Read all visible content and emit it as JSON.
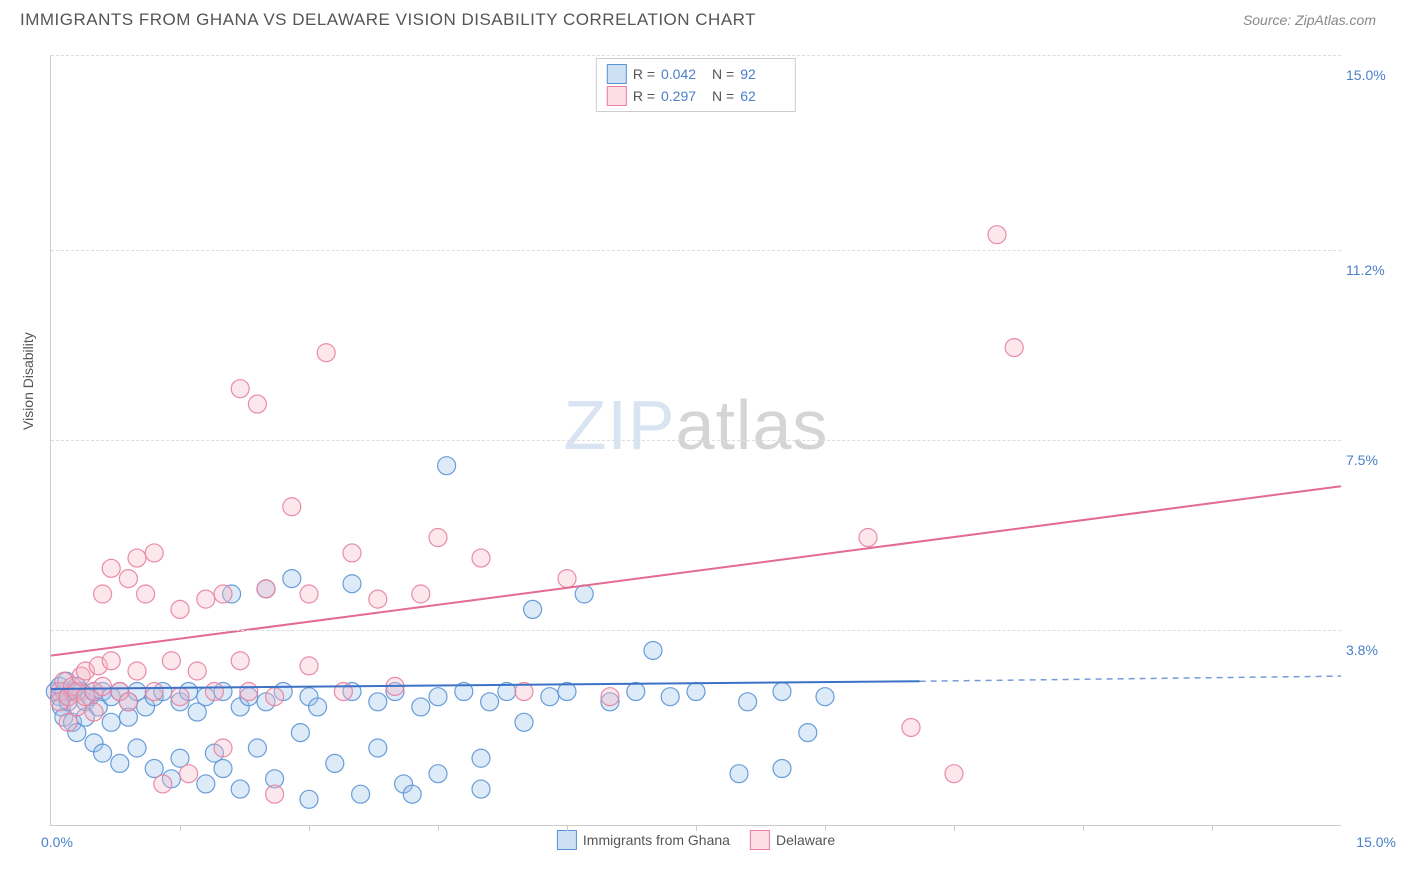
{
  "title": "IMMIGRANTS FROM GHANA VS DELAWARE VISION DISABILITY CORRELATION CHART",
  "source_label": "Source:",
  "source_name": "ZipAtlas.com",
  "ylabel": "Vision Disability",
  "watermark_main": "ZIP",
  "watermark_sub": "atlas",
  "chart": {
    "type": "scatter-with-trend",
    "xlim": [
      0,
      15
    ],
    "ylim": [
      0,
      15
    ],
    "yticks": [
      {
        "v": 3.8,
        "label": "3.8%"
      },
      {
        "v": 7.5,
        "label": "7.5%"
      },
      {
        "v": 11.2,
        "label": "11.2%"
      },
      {
        "v": 15.0,
        "label": "15.0%"
      }
    ],
    "xticks_minor": [
      1.5,
      3.0,
      4.5,
      6.0,
      7.5,
      9.0,
      10.5,
      12.0,
      13.5
    ],
    "xtick_left": "0.0%",
    "xtick_right": "15.0%",
    "grid_color": "#dddddd",
    "background": "#ffffff",
    "marker_radius": 9,
    "marker_fill_opacity": 0.35,
    "marker_stroke_opacity": 0.9,
    "series": [
      {
        "key": "ghana",
        "label": "Immigrants from Ghana",
        "color_fill": "#9ec4ea",
        "color_stroke": "#5a93d4",
        "R": "0.042",
        "N": "92",
        "trend": {
          "x1": 0,
          "y1": 2.65,
          "x2": 10.1,
          "y2": 2.8,
          "dash_x2": 15,
          "dash_y2": 2.9,
          "stroke": "#3c72c5",
          "width": 2
        },
        "points": [
          [
            0.05,
            2.6
          ],
          [
            0.1,
            2.5
          ],
          [
            0.1,
            2.7
          ],
          [
            0.12,
            2.3
          ],
          [
            0.15,
            2.6
          ],
          [
            0.15,
            2.1
          ],
          [
            0.18,
            2.8
          ],
          [
            0.2,
            2.4
          ],
          [
            0.2,
            2.5
          ],
          [
            0.25,
            2.6
          ],
          [
            0.25,
            2.0
          ],
          [
            0.3,
            2.7
          ],
          [
            0.3,
            1.8
          ],
          [
            0.35,
            2.6
          ],
          [
            0.4,
            2.4
          ],
          [
            0.4,
            2.1
          ],
          [
            0.45,
            2.5
          ],
          [
            0.5,
            2.6
          ],
          [
            0.5,
            1.6
          ],
          [
            0.55,
            2.3
          ],
          [
            0.6,
            2.6
          ],
          [
            0.6,
            1.4
          ],
          [
            0.7,
            2.5
          ],
          [
            0.7,
            2.0
          ],
          [
            0.8,
            2.6
          ],
          [
            0.8,
            1.2
          ],
          [
            0.9,
            2.4
          ],
          [
            0.9,
            2.1
          ],
          [
            1.0,
            2.6
          ],
          [
            1.0,
            1.5
          ],
          [
            1.1,
            2.3
          ],
          [
            1.2,
            1.1
          ],
          [
            1.2,
            2.5
          ],
          [
            1.3,
            2.6
          ],
          [
            1.4,
            0.9
          ],
          [
            1.5,
            2.4
          ],
          [
            1.5,
            1.3
          ],
          [
            1.6,
            2.6
          ],
          [
            1.7,
            2.2
          ],
          [
            1.8,
            0.8
          ],
          [
            1.8,
            2.5
          ],
          [
            1.9,
            1.4
          ],
          [
            2.0,
            2.6
          ],
          [
            2.0,
            1.1
          ],
          [
            2.1,
            4.5
          ],
          [
            2.2,
            2.3
          ],
          [
            2.2,
            0.7
          ],
          [
            2.3,
            2.5
          ],
          [
            2.4,
            1.5
          ],
          [
            2.5,
            4.6
          ],
          [
            2.5,
            2.4
          ],
          [
            2.6,
            0.9
          ],
          [
            2.7,
            2.6
          ],
          [
            2.8,
            4.8
          ],
          [
            2.9,
            1.8
          ],
          [
            3.0,
            2.5
          ],
          [
            3.0,
            0.5
          ],
          [
            3.1,
            2.3
          ],
          [
            3.3,
            1.2
          ],
          [
            3.5,
            2.6
          ],
          [
            3.5,
            4.7
          ],
          [
            3.6,
            0.6
          ],
          [
            3.8,
            2.4
          ],
          [
            3.8,
            1.5
          ],
          [
            4.0,
            2.6
          ],
          [
            4.1,
            0.8
          ],
          [
            4.3,
            2.3
          ],
          [
            4.5,
            2.5
          ],
          [
            4.5,
            1.0
          ],
          [
            4.6,
            7.0
          ],
          [
            4.8,
            2.6
          ],
          [
            5.0,
            1.3
          ],
          [
            5.1,
            2.4
          ],
          [
            5.3,
            2.6
          ],
          [
            5.5,
            2.0
          ],
          [
            5.6,
            4.2
          ],
          [
            5.8,
            2.5
          ],
          [
            6.0,
            2.6
          ],
          [
            6.2,
            4.5
          ],
          [
            6.5,
            2.4
          ],
          [
            6.8,
            2.6
          ],
          [
            7.0,
            3.4
          ],
          [
            7.2,
            2.5
          ],
          [
            7.5,
            2.6
          ],
          [
            8.0,
            1.0
          ],
          [
            8.1,
            2.4
          ],
          [
            8.5,
            2.6
          ],
          [
            8.5,
            1.1
          ],
          [
            9.0,
            2.5
          ],
          [
            8.8,
            1.8
          ],
          [
            5.0,
            0.7
          ],
          [
            4.2,
            0.6
          ]
        ]
      },
      {
        "key": "delaware",
        "label": "Delaware",
        "color_fill": "#f4b9c8",
        "color_stroke": "#e87fa0",
        "R": "0.297",
        "N": "62",
        "trend": {
          "x1": 0,
          "y1": 3.3,
          "x2": 15,
          "y2": 6.6,
          "dash_x2": null,
          "dash_y2": null,
          "stroke": "#e46a8f",
          "width": 2
        },
        "points": [
          [
            0.1,
            2.6
          ],
          [
            0.1,
            2.4
          ],
          [
            0.15,
            2.8
          ],
          [
            0.2,
            2.5
          ],
          [
            0.2,
            2.0
          ],
          [
            0.25,
            2.7
          ],
          [
            0.3,
            2.6
          ],
          [
            0.3,
            2.3
          ],
          [
            0.35,
            2.9
          ],
          [
            0.4,
            2.5
          ],
          [
            0.4,
            3.0
          ],
          [
            0.5,
            2.6
          ],
          [
            0.5,
            2.2
          ],
          [
            0.55,
            3.1
          ],
          [
            0.6,
            4.5
          ],
          [
            0.6,
            2.7
          ],
          [
            0.7,
            3.2
          ],
          [
            0.7,
            5.0
          ],
          [
            0.8,
            2.6
          ],
          [
            0.9,
            4.8
          ],
          [
            0.9,
            2.4
          ],
          [
            1.0,
            5.2
          ],
          [
            1.0,
            3.0
          ],
          [
            1.1,
            4.5
          ],
          [
            1.2,
            2.6
          ],
          [
            1.2,
            5.3
          ],
          [
            1.3,
            0.8
          ],
          [
            1.4,
            3.2
          ],
          [
            1.5,
            4.2
          ],
          [
            1.5,
            2.5
          ],
          [
            1.6,
            1.0
          ],
          [
            1.7,
            3.0
          ],
          [
            1.8,
            4.4
          ],
          [
            1.9,
            2.6
          ],
          [
            2.0,
            4.5
          ],
          [
            2.0,
            1.5
          ],
          [
            2.2,
            8.5
          ],
          [
            2.2,
            3.2
          ],
          [
            2.3,
            2.6
          ],
          [
            2.4,
            8.2
          ],
          [
            2.5,
            4.6
          ],
          [
            2.6,
            2.5
          ],
          [
            2.8,
            6.2
          ],
          [
            3.0,
            3.1
          ],
          [
            3.0,
            4.5
          ],
          [
            3.2,
            9.2
          ],
          [
            3.4,
            2.6
          ],
          [
            3.5,
            5.3
          ],
          [
            3.8,
            4.4
          ],
          [
            4.0,
            2.7
          ],
          [
            4.3,
            4.5
          ],
          [
            4.5,
            5.6
          ],
          [
            5.0,
            5.2
          ],
          [
            5.5,
            2.6
          ],
          [
            6.0,
            4.8
          ],
          [
            6.5,
            2.5
          ],
          [
            9.5,
            5.6
          ],
          [
            10.0,
            1.9
          ],
          [
            10.5,
            1.0
          ],
          [
            11.0,
            11.5
          ],
          [
            11.2,
            9.3
          ],
          [
            2.6,
            0.6
          ]
        ]
      }
    ]
  },
  "legend_top": {
    "r_label": "R =",
    "n_label": "N ="
  }
}
